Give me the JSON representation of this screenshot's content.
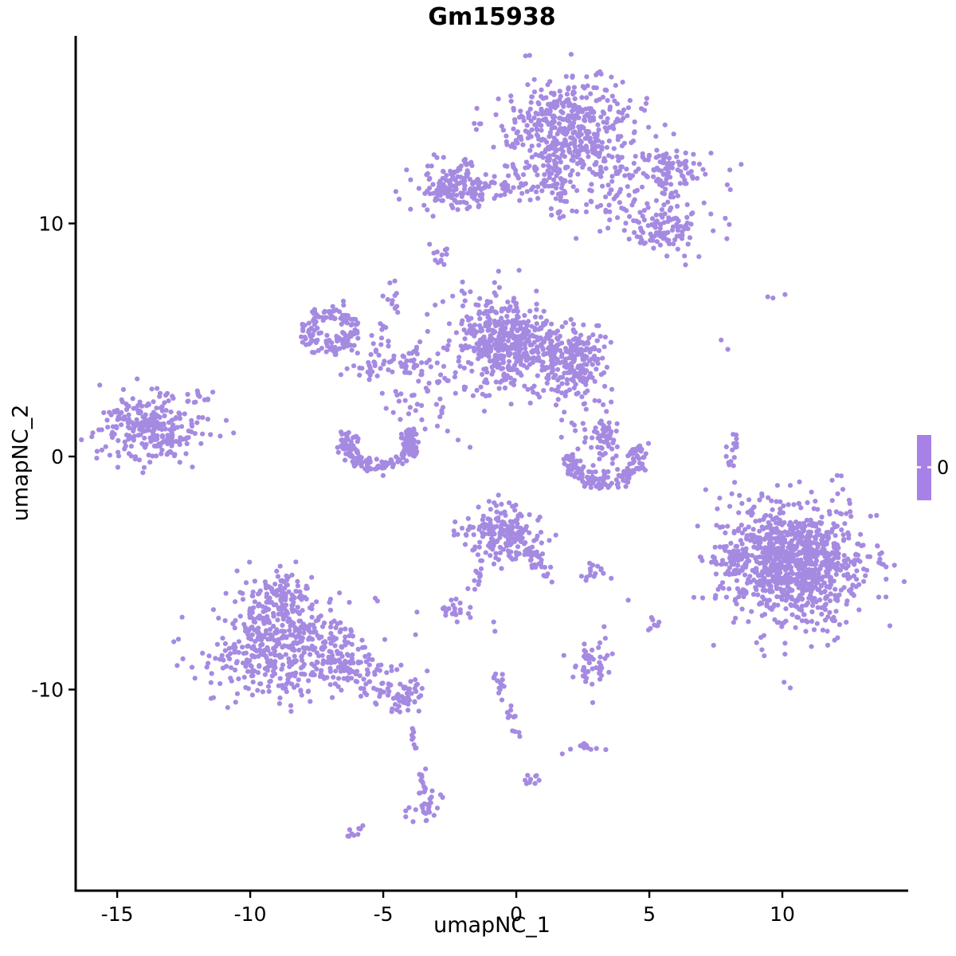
{
  "figure": {
    "title": "Gm15938",
    "x_label": "umapNC_1",
    "y_label": "umapNC_2",
    "legend_label": "0"
  },
  "colors": {
    "point": "#a58ae1",
    "legend_bar": "#a781e7",
    "axis": "#000000",
    "text": "#000000",
    "background": "#ffffff"
  },
  "chart_data": {
    "type": "scatter",
    "title": "Gm15938",
    "xlabel": "umapNC_1",
    "ylabel": "umapNC_2",
    "xlim": [
      -16.56,
      14.73
    ],
    "ylim": [
      -18.63,
      18.05
    ],
    "x_ticks": [
      -15,
      -10,
      -5,
      0,
      5,
      10
    ],
    "y_ticks": [
      -10,
      0,
      10
    ],
    "grid": false,
    "legend": {
      "type": "colorbar",
      "position": "right",
      "values": [
        0
      ],
      "label": "0"
    },
    "point_color": "#a58ae1",
    "point_radius_px": 3.1,
    "expression_value": 0,
    "description": "UMAP feature plot; every cell has expression 0 so all points share one purple colour. Clusters described as generative specs (data coordinates).",
    "clusters": [
      {
        "name": "top-main",
        "t": "g",
        "n": 430,
        "cx": 2.0,
        "cy": 14.2,
        "sx": 1.25,
        "sy": 1.05
      },
      {
        "name": "top-main-fringe",
        "t": "g",
        "n": 70,
        "cx": 1.7,
        "cy": 12.4,
        "sx": 1.1,
        "sy": 0.7
      },
      {
        "name": "top-neck",
        "t": "t",
        "n": 40,
        "pts": [
          [
            1.3,
            12.7
          ],
          [
            1.5,
            10.4
          ]
        ],
        "w": 0.3
      },
      {
        "name": "top-right-diffuse",
        "t": "g",
        "n": 150,
        "cx": 4.7,
        "cy": 11.3,
        "sx": 1.5,
        "sy": 1.15
      },
      {
        "name": "top-right-knob",
        "t": "g",
        "n": 55,
        "cx": 5.8,
        "cy": 12.45,
        "sx": 0.45,
        "sy": 0.4
      },
      {
        "name": "top-right-lower",
        "t": "g",
        "n": 75,
        "cx": 5.65,
        "cy": 9.6,
        "sx": 0.5,
        "sy": 0.5
      },
      {
        "name": "upper-left-blob",
        "t": "g",
        "n": 150,
        "cx": -2.35,
        "cy": 11.6,
        "sx": 0.7,
        "sy": 0.6
      },
      {
        "name": "upper-left-tail",
        "t": "t",
        "n": 32,
        "pts": [
          [
            -1.55,
            11.5
          ],
          [
            0.55,
            11.45
          ]
        ],
        "w": 0.25
      },
      {
        "name": "upper-left-dot",
        "t": "g",
        "n": 12,
        "cx": -2.95,
        "cy": 8.75,
        "sx": 0.22,
        "sy": 0.28
      },
      {
        "name": "left-ring",
        "t": "r",
        "n": 140,
        "cx": -7.0,
        "cy": 5.45,
        "rx": 0.85,
        "ry": 0.75,
        "a0": 0,
        "a1": 360,
        "w": 0.22
      },
      {
        "name": "ring-diag-trail",
        "t": "t",
        "n": 22,
        "pts": [
          [
            -4.35,
            6.95
          ],
          [
            -5.35,
            4.6
          ]
        ],
        "w": 0.22
      },
      {
        "name": "mid-chain",
        "t": "t",
        "n": 55,
        "pts": [
          [
            -6.3,
            3.65
          ],
          [
            -4.8,
            3.9
          ],
          [
            -3.2,
            4.25
          ]
        ],
        "w": 0.28
      },
      {
        "name": "mid-scatter",
        "t": "g",
        "n": 40,
        "cx": -2.9,
        "cy": 3.1,
        "sx": 0.85,
        "sy": 1.1
      },
      {
        "name": "center-left-lobe",
        "t": "g",
        "n": 380,
        "cx": -0.55,
        "cy": 5.0,
        "sx": 0.9,
        "sy": 1.0
      },
      {
        "name": "center-right-lobe",
        "t": "g",
        "n": 230,
        "cx": 2.0,
        "cy": 4.2,
        "sx": 0.72,
        "sy": 0.72
      },
      {
        "name": "center-bridge",
        "t": "g",
        "n": 60,
        "cx": 0.6,
        "cy": 4.5,
        "sx": 0.8,
        "sy": 0.85
      },
      {
        "name": "center-drip",
        "t": "t",
        "n": 16,
        "pts": [
          [
            2.4,
            2.9
          ],
          [
            3.1,
            1.7
          ]
        ],
        "w": 0.3
      },
      {
        "name": "hook-stem",
        "t": "g",
        "n": 45,
        "cx": 3.35,
        "cy": 0.75,
        "sx": 0.28,
        "sy": 0.6
      },
      {
        "name": "hook-stem-dots",
        "t": "g",
        "n": 13,
        "cx": 2.55,
        "cy": 0.95,
        "sx": 0.3,
        "sy": 0.4
      },
      {
        "name": "hook-crescent",
        "t": "r",
        "n": 165,
        "cx": 3.3,
        "cy": -0.05,
        "rx": 1.3,
        "ry": 1.05,
        "a0": 170,
        "a1": 385,
        "w": 0.16
      },
      {
        "name": "far-left",
        "t": "g",
        "n": 270,
        "cx": -13.7,
        "cy": 1.15,
        "sx": 0.95,
        "sy": 0.7
      },
      {
        "name": "far-left-sat",
        "t": "g",
        "n": 10,
        "cx": -11.75,
        "cy": 2.6,
        "sx": 0.22,
        "sy": 0.18
      },
      {
        "name": "left-crescent",
        "t": "r",
        "n": 175,
        "cx": -5.15,
        "cy": 0.55,
        "rx": 1.25,
        "ry": 0.95,
        "a0": 150,
        "a1": 395,
        "w": 0.18
      },
      {
        "name": "crescent-bridge",
        "t": "g",
        "n": 22,
        "cx": -4.1,
        "cy": 2.5,
        "sx": 0.65,
        "sy": 0.7
      },
      {
        "name": "lower-center",
        "t": "g",
        "n": 200,
        "cx": -0.45,
        "cy": -3.35,
        "sx": 0.72,
        "sy": 0.65
      },
      {
        "name": "lower-center-arm",
        "t": "t",
        "n": 26,
        "pts": [
          [
            0.55,
            -3.9
          ],
          [
            1.2,
            -5.5
          ]
        ],
        "w": 0.18
      },
      {
        "name": "lower-center-drip",
        "t": "t",
        "n": 10,
        "pts": [
          [
            -1.2,
            -4.6
          ],
          [
            -1.8,
            -5.9
          ]
        ],
        "w": 0.1
      },
      {
        "name": "small-pair",
        "t": "g",
        "n": 15,
        "cx": 3.05,
        "cy": -4.9,
        "sx": 0.3,
        "sy": 0.2
      },
      {
        "name": "bottom-left-top",
        "t": "g",
        "n": 160,
        "cx": -8.8,
        "cy": -6.4,
        "sx": 0.8,
        "sy": 0.75
      },
      {
        "name": "bottom-left-main",
        "t": "g",
        "n": 430,
        "cx": -8.6,
        "cy": -8.3,
        "sx": 1.45,
        "sy": 1.0
      },
      {
        "name": "bottom-left-tail",
        "t": "t",
        "n": 65,
        "pts": [
          [
            -6.8,
            -8.7
          ],
          [
            -4.7,
            -9.9
          ]
        ],
        "w": 0.35
      },
      {
        "name": "tail-blob",
        "t": "g",
        "n": 55,
        "cx": -4.2,
        "cy": -10.3,
        "sx": 0.45,
        "sy": 0.4
      },
      {
        "name": "drip-1",
        "t": "t",
        "n": 9,
        "pts": [
          [
            -4.0,
            -11.2
          ],
          [
            -3.7,
            -13.1
          ]
        ],
        "w": 0.08
      },
      {
        "name": "drip-2",
        "t": "t",
        "n": 12,
        "pts": [
          [
            -3.6,
            -13.4
          ],
          [
            -3.45,
            -14.4
          ]
        ],
        "w": 0.07
      },
      {
        "name": "bottom-blob",
        "t": "g",
        "n": 28,
        "cx": -3.5,
        "cy": -15.0,
        "sx": 0.3,
        "sy": 0.33
      },
      {
        "name": "bottom-right-main",
        "t": "g",
        "n": 750,
        "cx": 10.4,
        "cy": -4.65,
        "sx": 1.5,
        "sy": 1.4
      },
      {
        "name": "bottom-right-core",
        "t": "g",
        "n": 260,
        "cx": 10.7,
        "cy": -4.5,
        "sx": 0.95,
        "sy": 0.85
      },
      {
        "name": "bottom-right-west",
        "t": "g",
        "n": 40,
        "cx": 8.35,
        "cy": -4.4,
        "sx": 0.4,
        "sy": 0.4
      },
      {
        "name": "right-vert-trail",
        "t": "t",
        "n": 16,
        "pts": [
          [
            8.25,
            1.2
          ],
          [
            7.95,
            -0.5
          ]
        ],
        "w": 0.1
      },
      {
        "name": "mid-right-blob",
        "t": "g",
        "n": 45,
        "cx": 2.9,
        "cy": -9.1,
        "sx": 0.38,
        "sy": 0.5
      },
      {
        "name": "tiny-low-right",
        "t": "g",
        "n": 13,
        "cx": 2.5,
        "cy": -12.4,
        "sx": 0.28,
        "sy": 0.22
      },
      {
        "name": "tiny-mid-right",
        "t": "g",
        "n": 8,
        "cx": 5.1,
        "cy": -7.0,
        "sx": 0.18,
        "sy": 0.24
      },
      {
        "name": "small-left-low",
        "t": "g",
        "n": 20,
        "cx": -2.45,
        "cy": -6.6,
        "sx": 0.38,
        "sy": 0.25
      },
      {
        "name": "curved-trail",
        "t": "t",
        "n": 26,
        "pts": [
          [
            -0.75,
            -9.3
          ],
          [
            -0.35,
            -10.6
          ],
          [
            0.0,
            -12.05
          ]
        ],
        "w": 0.12
      },
      {
        "name": "tiny-bottom",
        "t": "g",
        "n": 9,
        "cx": 0.45,
        "cy": -13.9,
        "sx": 0.22,
        "sy": 0.18
      },
      {
        "name": "bottom-dash",
        "t": "t",
        "n": 9,
        "pts": [
          [
            -6.3,
            -16.25
          ],
          [
            -5.75,
            -15.85
          ]
        ],
        "w": 0.07
      },
      {
        "name": "singles",
        "t": "s",
        "pts": [
          [
            8.1,
            -1.6
          ],
          [
            7.7,
            5.0
          ],
          [
            7.95,
            4.6
          ],
          [
            9.45,
            6.85
          ],
          [
            9.65,
            6.8
          ],
          [
            10.1,
            6.95
          ],
          [
            -4.75,
            7.45
          ],
          [
            -4.5,
            7.0
          ],
          [
            -3.35,
            6.1
          ],
          [
            -3.05,
            6.5
          ],
          [
            -0.85,
            -7.1
          ],
          [
            -0.8,
            -7.5
          ],
          [
            3.3,
            -7.3
          ],
          [
            3.35,
            -7.8
          ],
          [
            -10.9,
            1.55
          ],
          [
            -12.0,
            1.45
          ]
        ]
      }
    ]
  }
}
